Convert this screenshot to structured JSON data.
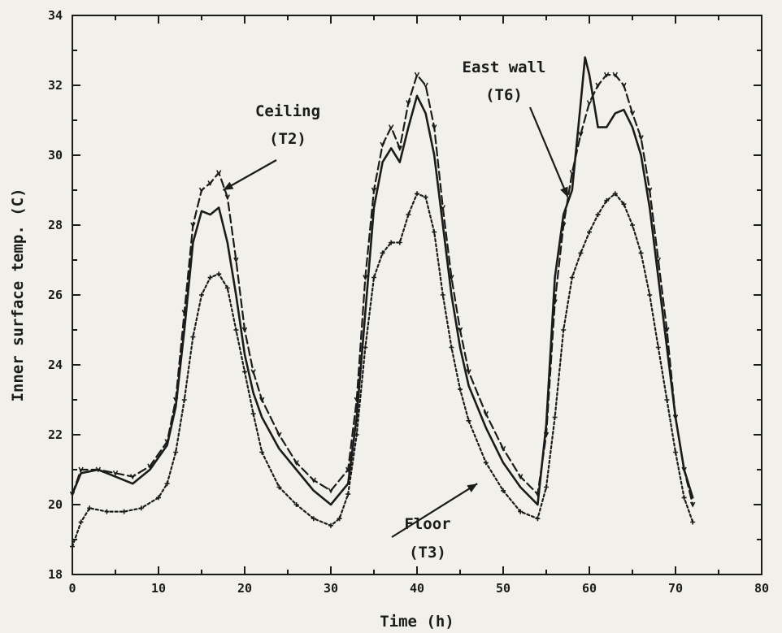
{
  "chart_data": {
    "type": "line",
    "xlabel": "Time (h)",
    "ylabel": "Inner surface temp. (C)",
    "xlim": [
      0,
      80
    ],
    "ylim": [
      18,
      34
    ],
    "x_ticks": [
      "0",
      "10",
      "20",
      "30",
      "40",
      "50",
      "60",
      "70",
      "80"
    ],
    "y_ticks": [
      "18",
      "20",
      "22",
      "24",
      "26",
      "28",
      "30",
      "32",
      "34"
    ],
    "grid": false,
    "annotations": [
      {
        "lines": [
          "Ceiling",
          "(T2)"
        ],
        "points_to_x": 17.5,
        "points_to_y": 29.0
      },
      {
        "lines": [
          "East wall",
          "(T6)"
        ],
        "points_to_x": 57.5,
        "points_to_y": 28.8
      },
      {
        "lines": [
          "Floor",
          "(T3)"
        ],
        "points_to_x": 47.0,
        "points_to_y": 20.6
      }
    ],
    "series": [
      {
        "style": "dashed-marker",
        "x": [
          0,
          1,
          3,
          5,
          7,
          9,
          11,
          12,
          13,
          14,
          15,
          16,
          17,
          18,
          19,
          20,
          21,
          22,
          24,
          26,
          28,
          30,
          32,
          33,
          34,
          35,
          36,
          37,
          38,
          39,
          40,
          41,
          42,
          43,
          44,
          45,
          46,
          48,
          50,
          52,
          54,
          55,
          56,
          57,
          58,
          59,
          60,
          61,
          62,
          63,
          64,
          65,
          66,
          67,
          68,
          69,
          70,
          71,
          72
        ],
        "y": [
          20.3,
          21.0,
          21.0,
          20.9,
          20.8,
          21.1,
          21.8,
          23.0,
          25.5,
          28.0,
          29.0,
          29.2,
          29.5,
          28.8,
          27.0,
          25.0,
          23.8,
          23.0,
          22.0,
          21.2,
          20.7,
          20.4,
          21.0,
          23.0,
          26.5,
          29.0,
          30.3,
          30.8,
          30.2,
          31.5,
          32.3,
          32.0,
          30.8,
          28.5,
          26.5,
          25.0,
          23.8,
          22.6,
          21.6,
          20.8,
          20.3,
          22.0,
          25.8,
          28.0,
          29.5,
          30.6,
          31.5,
          32.0,
          32.3,
          32.3,
          32.0,
          31.2,
          30.5,
          29.0,
          27.0,
          25.0,
          22.5,
          21.0,
          20.0
        ]
      },
      {
        "style": "solid",
        "x": [
          0,
          1,
          3,
          5,
          7,
          9,
          11,
          12,
          13,
          14,
          15,
          16,
          17,
          18,
          19,
          20,
          21,
          22,
          24,
          26,
          28,
          30,
          32,
          33,
          34,
          35,
          36,
          37,
          38,
          39,
          40,
          41,
          42,
          43,
          44,
          45,
          46,
          48,
          50,
          52,
          54,
          55,
          56,
          57,
          58,
          59,
          59.5,
          60,
          61,
          62,
          63,
          64,
          65,
          66,
          67,
          68,
          69,
          70,
          71,
          72
        ],
        "y": [
          20.3,
          20.9,
          21.0,
          20.8,
          20.6,
          21.0,
          21.7,
          22.8,
          25.0,
          27.5,
          28.4,
          28.3,
          28.5,
          27.5,
          26.0,
          24.3,
          23.2,
          22.5,
          21.6,
          21.0,
          20.4,
          20.0,
          20.6,
          22.5,
          25.5,
          28.5,
          29.8,
          30.2,
          29.8,
          30.8,
          31.7,
          31.2,
          30.0,
          28.0,
          26.0,
          24.5,
          23.4,
          22.2,
          21.2,
          20.5,
          20.0,
          22.3,
          26.5,
          28.3,
          29.0,
          31.5,
          32.8,
          32.3,
          30.8,
          30.8,
          31.2,
          31.3,
          30.8,
          30.0,
          28.5,
          26.5,
          24.5,
          22.5,
          21.0,
          20.2
        ]
      },
      {
        "style": "cross-marker",
        "x": [
          0,
          1,
          2,
          4,
          6,
          8,
          10,
          11,
          12,
          13,
          14,
          15,
          16,
          17,
          18,
          19,
          20,
          21,
          22,
          24,
          26,
          28,
          30,
          31,
          32,
          33,
          34,
          35,
          36,
          37,
          38,
          39,
          40,
          41,
          42,
          43,
          44,
          45,
          46,
          48,
          50,
          52,
          54,
          55,
          56,
          57,
          58,
          59,
          60,
          61,
          62,
          63,
          64,
          65,
          66,
          67,
          68,
          69,
          70,
          71,
          72
        ],
        "y": [
          18.8,
          19.5,
          19.9,
          19.8,
          19.8,
          19.9,
          20.2,
          20.6,
          21.5,
          23.0,
          24.8,
          26.0,
          26.5,
          26.6,
          26.2,
          25.0,
          23.8,
          22.6,
          21.5,
          20.5,
          20.0,
          19.6,
          19.4,
          19.6,
          20.3,
          22.0,
          24.5,
          26.5,
          27.2,
          27.5,
          27.5,
          28.3,
          28.9,
          28.8,
          27.8,
          26.0,
          24.5,
          23.3,
          22.4,
          21.2,
          20.4,
          19.8,
          19.6,
          20.5,
          22.5,
          25.0,
          26.5,
          27.2,
          27.8,
          28.3,
          28.7,
          28.9,
          28.6,
          28.0,
          27.2,
          26.0,
          24.5,
          23.0,
          21.5,
          20.2,
          19.5
        ]
      }
    ]
  }
}
